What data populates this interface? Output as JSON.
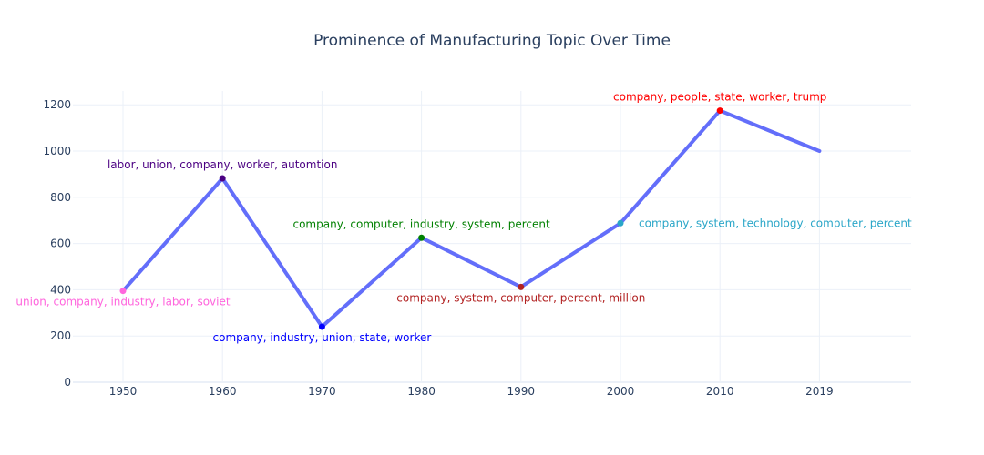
{
  "chart_data": {
    "type": "line",
    "title": "Prominence of Manufacturing Topic Over Time",
    "xlabel": "",
    "ylabel": "",
    "x": [
      "1950",
      "1960",
      "1970",
      "1980",
      "1990",
      "2000",
      "2010",
      "2019"
    ],
    "values": [
      395,
      882,
      240,
      625,
      412,
      688,
      1175,
      1000
    ],
    "ylim": [
      0,
      1260
    ],
    "y_ticks": [
      0,
      200,
      400,
      600,
      800,
      1000,
      1200
    ],
    "grid": true,
    "line_color": "#636efa",
    "points": [
      {
        "label": "union, company, industry, labor, soviet",
        "color": "#ff66dd",
        "position": "bottom"
      },
      {
        "label": "labor, union, company, worker, automtion",
        "color": "#4b0082",
        "position": "top"
      },
      {
        "label": "company, industry, union, state, worker",
        "color": "#0000ff",
        "position": "bottom"
      },
      {
        "label": "company, computer, industry, system, percent",
        "color": "#008000",
        "position": "top"
      },
      {
        "label": "company, system, computer, percent, million",
        "color": "#b22222",
        "position": "bottom"
      },
      {
        "label": "company, system, technology, computer, percent",
        "color": "#2aa6c8",
        "position": "right"
      },
      {
        "label": "company, people, state, worker, trump",
        "color": "#ff0000",
        "position": "top"
      },
      {
        "label": "",
        "color": "",
        "position": "none"
      }
    ]
  }
}
